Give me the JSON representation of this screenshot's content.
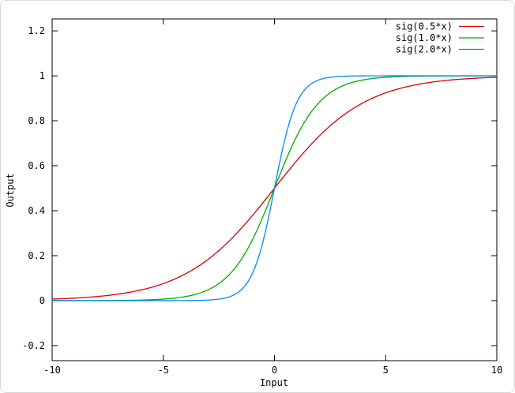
{
  "figure": {
    "background": "#ffffff",
    "frame_color": "#d8d8d8",
    "text_color": "#000000",
    "axis_color": "#000000"
  },
  "chart_data": {
    "type": "line",
    "title": "",
    "xlabel": "Input",
    "ylabel": "Output",
    "xlim": [
      -10,
      10
    ],
    "ylim": [
      -0.267,
      1.253
    ],
    "x_ticks": [
      -10,
      -5,
      0,
      5,
      10
    ],
    "y_ticks": [
      -0.2,
      0,
      0.2,
      0.4,
      0.6,
      0.8,
      1,
      1.2
    ],
    "grid": false,
    "legend_position": "top-right-inside",
    "x": [
      -10,
      -9,
      -8,
      -7,
      -6,
      -5,
      -4,
      -3,
      -2,
      -1,
      0,
      1,
      2,
      3,
      4,
      5,
      6,
      7,
      8,
      9,
      10
    ],
    "series": [
      {
        "name": "sig(0.5*x)",
        "k": 0.5,
        "color": "#dd0000",
        "values": [
          0.0067,
          0.011,
          0.018,
          0.0293,
          0.0474,
          0.0759,
          0.1192,
          0.1824,
          0.2689,
          0.3775,
          0.5,
          0.6225,
          0.7311,
          0.8176,
          0.8808,
          0.9241,
          0.9526,
          0.9707,
          0.982,
          0.989,
          0.9933
        ]
      },
      {
        "name": "sig(1.0*x)",
        "k": 1.0,
        "color": "#00aa00",
        "values": [
          0.0,
          0.0001,
          0.0003,
          0.0009,
          0.0025,
          0.0067,
          0.018,
          0.0474,
          0.1192,
          0.2689,
          0.5,
          0.7311,
          0.8808,
          0.9526,
          0.982,
          0.9933,
          0.9975,
          0.9991,
          0.9997,
          0.9999,
          1.0
        ]
      },
      {
        "name": "sig(2.0*x)",
        "k": 2.0,
        "color": "#0088ff",
        "values": [
          0.0,
          0.0,
          0.0,
          0.0,
          0.0,
          0.0,
          0.0003,
          0.0025,
          0.018,
          0.1192,
          0.5,
          0.8808,
          0.982,
          0.9975,
          0.9997,
          1.0,
          1.0,
          1.0,
          1.0,
          1.0,
          1.0
        ]
      }
    ]
  }
}
